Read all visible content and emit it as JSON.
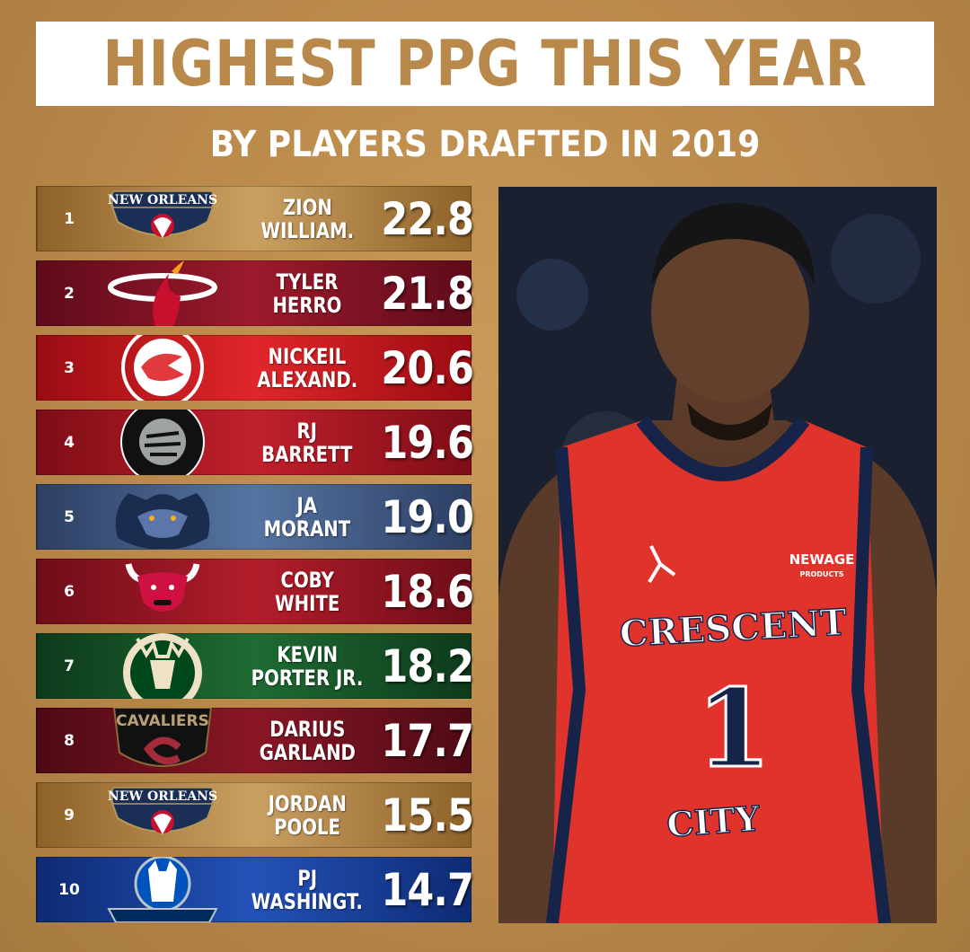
{
  "header": {
    "title": "HIGHEST PPG THIS YEAR",
    "subtitle": "BY PLAYERS DRAFTED IN 2019"
  },
  "players": [
    {
      "rank": "1",
      "first": "ZION",
      "last": "WILLIAM.",
      "ppg": "22.8",
      "team": "new-orleans-pelicans",
      "logo_text": "NEW ORLEANS"
    },
    {
      "rank": "2",
      "first": "TYLER",
      "last": "HERRO",
      "ppg": "21.8",
      "team": "miami-heat"
    },
    {
      "rank": "3",
      "first": "NICKEIL",
      "last": "ALEXAND.",
      "ppg": "20.6",
      "team": "atlanta-hawks"
    },
    {
      "rank": "4",
      "first": "RJ",
      "last": "BARRETT",
      "ppg": "19.6",
      "team": "toronto-raptors"
    },
    {
      "rank": "5",
      "first": "JA",
      "last": "MORANT",
      "ppg": "19.0",
      "team": "memphis-grizzlies"
    },
    {
      "rank": "6",
      "first": "COBY",
      "last": "WHITE",
      "ppg": "18.6",
      "team": "chicago-bulls"
    },
    {
      "rank": "7",
      "first": "KEVIN",
      "last": "PORTER JR.",
      "ppg": "18.2",
      "team": "milwaukee-bucks"
    },
    {
      "rank": "8",
      "first": "DARIUS",
      "last": "GARLAND",
      "ppg": "17.7",
      "team": "cleveland-cavaliers",
      "logo_text": "CAVALIERS"
    },
    {
      "rank": "9",
      "first": "JORDAN",
      "last": "POOLE",
      "ppg": "15.5",
      "team": "new-orleans-pelicans",
      "logo_text": "NEW ORLEANS"
    },
    {
      "rank": "10",
      "first": "PJ",
      "last": "WASHINGT.",
      "ppg": "14.7",
      "team": "dallas-mavericks"
    }
  ],
  "photo": {
    "jersey_text": "CRESCENT",
    "jersey_city": "CITY",
    "jersey_number": "1",
    "sponsor": "NEWAGE",
    "sponsor_sub": "PRODUCTS"
  },
  "colors": {
    "background": "#b9884a",
    "title_text": "#b8894a",
    "jersey_red": "#e0332b"
  }
}
